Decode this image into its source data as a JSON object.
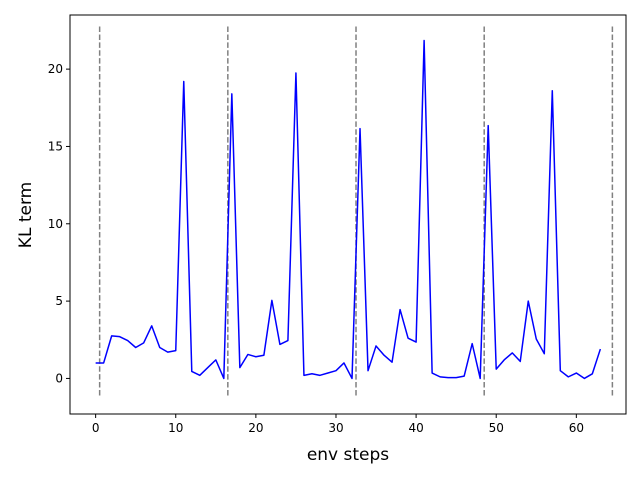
{
  "chart_data": {
    "type": "line",
    "title": "",
    "xlabel": "env steps",
    "ylabel": "KL term",
    "xlim": [
      -3.2,
      66.2
    ],
    "ylim": [
      -2.3,
      23.5
    ],
    "xticks": [
      0,
      10,
      20,
      30,
      40,
      50,
      60
    ],
    "yticks": [
      0,
      5,
      10,
      15,
      20
    ],
    "grid": false,
    "series": [
      {
        "color": "#0000ff",
        "x": [
          0,
          1,
          2,
          3,
          4,
          5,
          6,
          7,
          8,
          9,
          10,
          11,
          12,
          13,
          14,
          15,
          16,
          17,
          18,
          19,
          20,
          21,
          22,
          23,
          24,
          25,
          26,
          27,
          28,
          29,
          30,
          31,
          32,
          33,
          34,
          35,
          36,
          37,
          38,
          39,
          40,
          41,
          42,
          43,
          44,
          45,
          46,
          47,
          48,
          49,
          50,
          51,
          52,
          53,
          54,
          55,
          56,
          57,
          58,
          59,
          60,
          61,
          62,
          63
        ],
        "values": [
          1.0,
          1.0,
          2.75,
          2.7,
          2.45,
          2.0,
          2.3,
          3.4,
          2.0,
          1.7,
          1.8,
          19.2,
          0.45,
          0.2,
          0.7,
          1.2,
          0.0,
          18.4,
          0.7,
          1.55,
          1.4,
          1.5,
          5.05,
          2.2,
          2.45,
          19.75,
          0.2,
          0.3,
          0.2,
          0.35,
          0.5,
          1.0,
          0.0,
          16.15,
          0.5,
          2.1,
          1.5,
          1.05,
          4.45,
          2.6,
          2.35,
          21.85,
          0.35,
          0.1,
          0.05,
          0.05,
          0.15,
          2.25,
          0.0,
          16.35,
          0.6,
          1.2,
          1.65,
          1.1,
          5.0,
          2.55,
          1.6,
          18.6,
          0.5,
          0.1,
          0.35,
          0.0,
          0.3,
          1.9
        ]
      }
    ],
    "vlines": {
      "x": [
        0.5,
        16.5,
        32.5,
        48.5,
        64.5
      ],
      "y_range": [
        -1.1,
        22.8
      ],
      "color": "#808080",
      "style": "dashed"
    }
  }
}
